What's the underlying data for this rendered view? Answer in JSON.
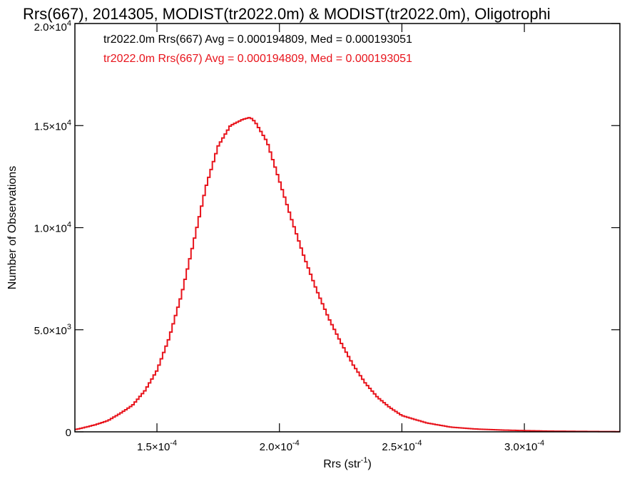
{
  "chart_data": {
    "type": "histogram-step",
    "title": "Rrs(667), 2014305, MODIST(tr2022.0m) & MODIST(tr2022.0m), Oligotrophi",
    "xlabel": "Rrs (str",
    "xlabel_sup": "-1",
    "xlabel_tail": ")",
    "ylabel": "Number of Observations",
    "xlim": [
      0.0001165,
      0.000339
    ],
    "ylim": [
      0,
      20000
    ],
    "x_ticks": [
      {
        "value": 0.00015,
        "mantissa": "1.5",
        "exp": "-4"
      },
      {
        "value": 0.0002,
        "mantissa": "2.0",
        "exp": "-4"
      },
      {
        "value": 0.00025,
        "mantissa": "2.5",
        "exp": "-4"
      },
      {
        "value": 0.0003,
        "mantissa": "3.0",
        "exp": "-4"
      }
    ],
    "y_ticks": [
      {
        "value": 0,
        "mantissa": "0",
        "exp": ""
      },
      {
        "value": 5000,
        "mantissa": "5.0",
        "exp": "3"
      },
      {
        "value": 10000,
        "mantissa": "1.0",
        "exp": "4"
      },
      {
        "value": 15000,
        "mantissa": "1.5",
        "exp": "4"
      },
      {
        "value": 20000,
        "mantissa": "2.0",
        "exp": "4"
      }
    ],
    "legend": [
      {
        "text": "tr2022.0m Rrs(667) Avg = 0.000194809, Med = 0.000193051",
        "color": "#000000"
      },
      {
        "text": "tr2022.0m Rrs(667) Avg = 0.000194809, Med = 0.000193051",
        "color": "#e8141c"
      }
    ],
    "series": [
      {
        "color": "#e8141c",
        "x": [
          0.000117,
          0.00012,
          0.000125,
          0.00013,
          0.000135,
          0.00014,
          0.000145,
          0.00015,
          0.000155,
          0.00016,
          0.000165,
          0.00017,
          0.000175,
          0.00018,
          0.000185,
          0.000188,
          0.00019,
          0.000195,
          0.0002,
          0.000205,
          0.00021,
          0.000215,
          0.00022,
          0.000225,
          0.00023,
          0.000235,
          0.00024,
          0.000245,
          0.00025,
          0.00026,
          0.00027,
          0.00028,
          0.00029,
          0.0003,
          0.00031,
          0.00032,
          0.00033,
          0.000339
        ],
        "y": [
          120,
          200,
          350,
          550,
          900,
          1300,
          2000,
          3000,
          4600,
          6700,
          9300,
          12000,
          14000,
          15000,
          15300,
          15400,
          15200,
          14200,
          12300,
          10400,
          8600,
          7000,
          5600,
          4400,
          3300,
          2400,
          1700,
          1200,
          800,
          440,
          230,
          140,
          90,
          60,
          35,
          25,
          15,
          10
        ]
      }
    ]
  }
}
